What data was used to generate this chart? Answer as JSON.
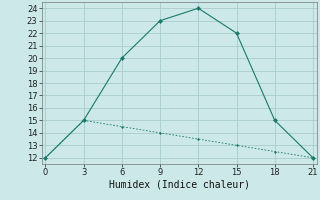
{
  "xlabel": "Humidex (Indice chaleur)",
  "background_color": "#cce8e8",
  "grid_color": "#aacccc",
  "line_color": "#1a7a6a",
  "x_line1": [
    0,
    3,
    6,
    9,
    12,
    15,
    18,
    21
  ],
  "y_line1": [
    12,
    15,
    20,
    23,
    24,
    22,
    15,
    12
  ],
  "x_line2": [
    0,
    3,
    6,
    9,
    12,
    15,
    18,
    21
  ],
  "y_line2": [
    12,
    15,
    14.5,
    14,
    13.5,
    13,
    12.5,
    12
  ],
  "xlim": [
    -0.3,
    21.3
  ],
  "ylim": [
    11.5,
    24.5
  ],
  "xticks": [
    0,
    3,
    6,
    9,
    12,
    15,
    18,
    21
  ],
  "yticks": [
    12,
    13,
    14,
    15,
    16,
    17,
    18,
    19,
    20,
    21,
    22,
    23,
    24
  ],
  "tick_fontsize": 6,
  "xlabel_fontsize": 7
}
